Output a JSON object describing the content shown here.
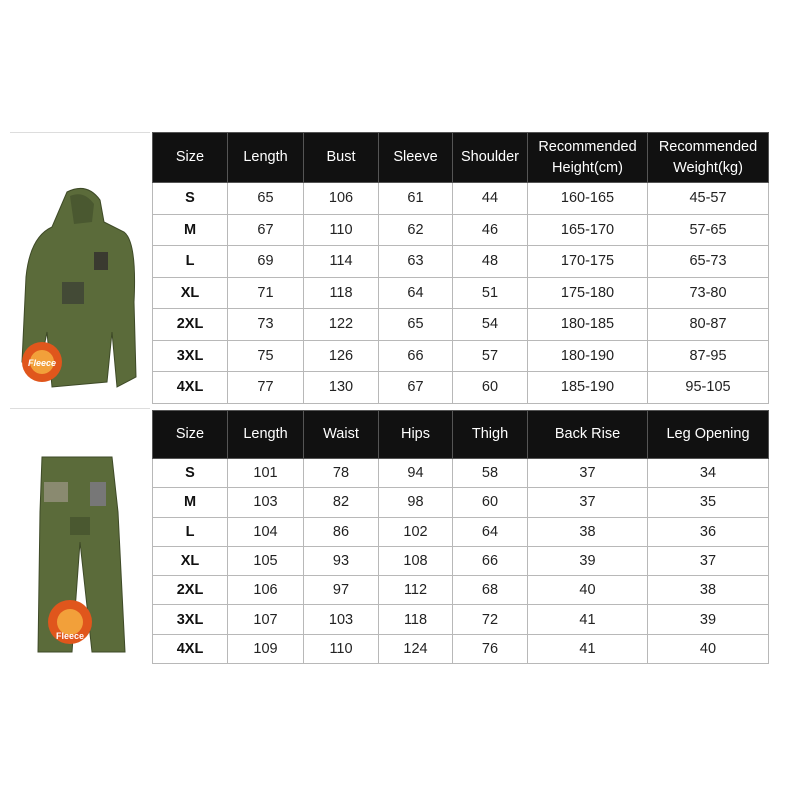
{
  "jacket_chart": {
    "badge_label": "Fleece",
    "headers": [
      "Size",
      "Length",
      "Bust",
      "Sleeve",
      "Shoulder",
      "Recommended Height(cm)",
      "Recommended Weight(kg)"
    ],
    "rows": [
      [
        "S",
        "65",
        "106",
        "61",
        "44",
        "160-165",
        "45-57"
      ],
      [
        "M",
        "67",
        "110",
        "62",
        "46",
        "165-170",
        "57-65"
      ],
      [
        "L",
        "69",
        "114",
        "63",
        "48",
        "170-175",
        "65-73"
      ],
      [
        "XL",
        "71",
        "118",
        "64",
        "51",
        "175-180",
        "73-80"
      ],
      [
        "2XL",
        "73",
        "122",
        "65",
        "54",
        "180-185",
        "80-87"
      ],
      [
        "3XL",
        "75",
        "126",
        "66",
        "57",
        "180-190",
        "87-95"
      ],
      [
        "4XL",
        "77",
        "130",
        "67",
        "60",
        "185-190",
        "95-105"
      ]
    ]
  },
  "pants_chart": {
    "badge_label": "Fleece",
    "headers": [
      "Size",
      "Length",
      "Waist",
      "Hips",
      "Thigh",
      "Back Rise",
      "Leg Opening"
    ],
    "rows": [
      [
        "S",
        "101",
        "78",
        "94",
        "58",
        "37",
        "34"
      ],
      [
        "M",
        "103",
        "82",
        "98",
        "60",
        "37",
        "35"
      ],
      [
        "L",
        "104",
        "86",
        "102",
        "64",
        "38",
        "36"
      ],
      [
        "XL",
        "105",
        "93",
        "108",
        "66",
        "39",
        "37"
      ],
      [
        "2XL",
        "106",
        "97",
        "112",
        "68",
        "40",
        "38"
      ],
      [
        "3XL",
        "107",
        "103",
        "118",
        "72",
        "41",
        "39"
      ],
      [
        "4XL",
        "109",
        "110",
        "124",
        "76",
        "41",
        "40"
      ]
    ]
  },
  "colors": {
    "header_bg": "#111111",
    "garment": "#5b6b3a",
    "fleece": "#e0561c"
  }
}
